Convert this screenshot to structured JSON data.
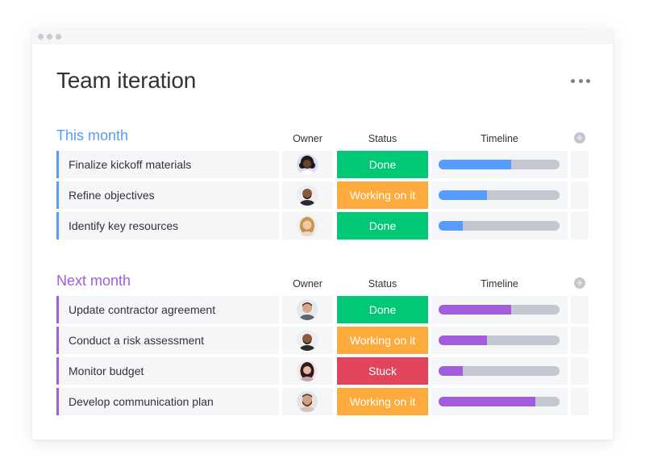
{
  "board": {
    "title": "Team iteration"
  },
  "columns": {
    "owner": "Owner",
    "status": "Status",
    "timeline": "Timeline"
  },
  "colors": {
    "this_month": "#579bfc",
    "next_month": "#a25ddc",
    "done": "#00c875",
    "working": "#fdab3d",
    "stuck": "#e2445c"
  },
  "groups": [
    {
      "title": "This month",
      "rows": [
        {
          "name": "Finalize kickoff materials",
          "owner": "avatar-woman-curly",
          "status": "Done",
          "status_type": "done",
          "progress": 0.6
        },
        {
          "name": "Refine objectives",
          "owner": "avatar-man-bald",
          "status": "Working on it",
          "status_type": "working",
          "progress": 0.4
        },
        {
          "name": "Identify key resources",
          "owner": "avatar-woman-blonde",
          "status": "Done",
          "status_type": "done",
          "progress": 0.2
        }
      ]
    },
    {
      "title": "Next month",
      "rows": [
        {
          "name": "Update contractor agreement",
          "owner": "avatar-man-short-hair",
          "status": "Done",
          "status_type": "done",
          "progress": 0.6
        },
        {
          "name": "Conduct a risk assessment",
          "owner": "avatar-man-bald",
          "status": "Working on it",
          "status_type": "working",
          "progress": 0.4
        },
        {
          "name": "Monitor budget",
          "owner": "avatar-woman-dark-hair",
          "status": "Stuck",
          "status_type": "stuck",
          "progress": 0.2
        },
        {
          "name": "Develop communication plan",
          "owner": "avatar-man-beard",
          "status": "Working on it",
          "status_type": "working",
          "progress": 0.8
        }
      ]
    }
  ]
}
